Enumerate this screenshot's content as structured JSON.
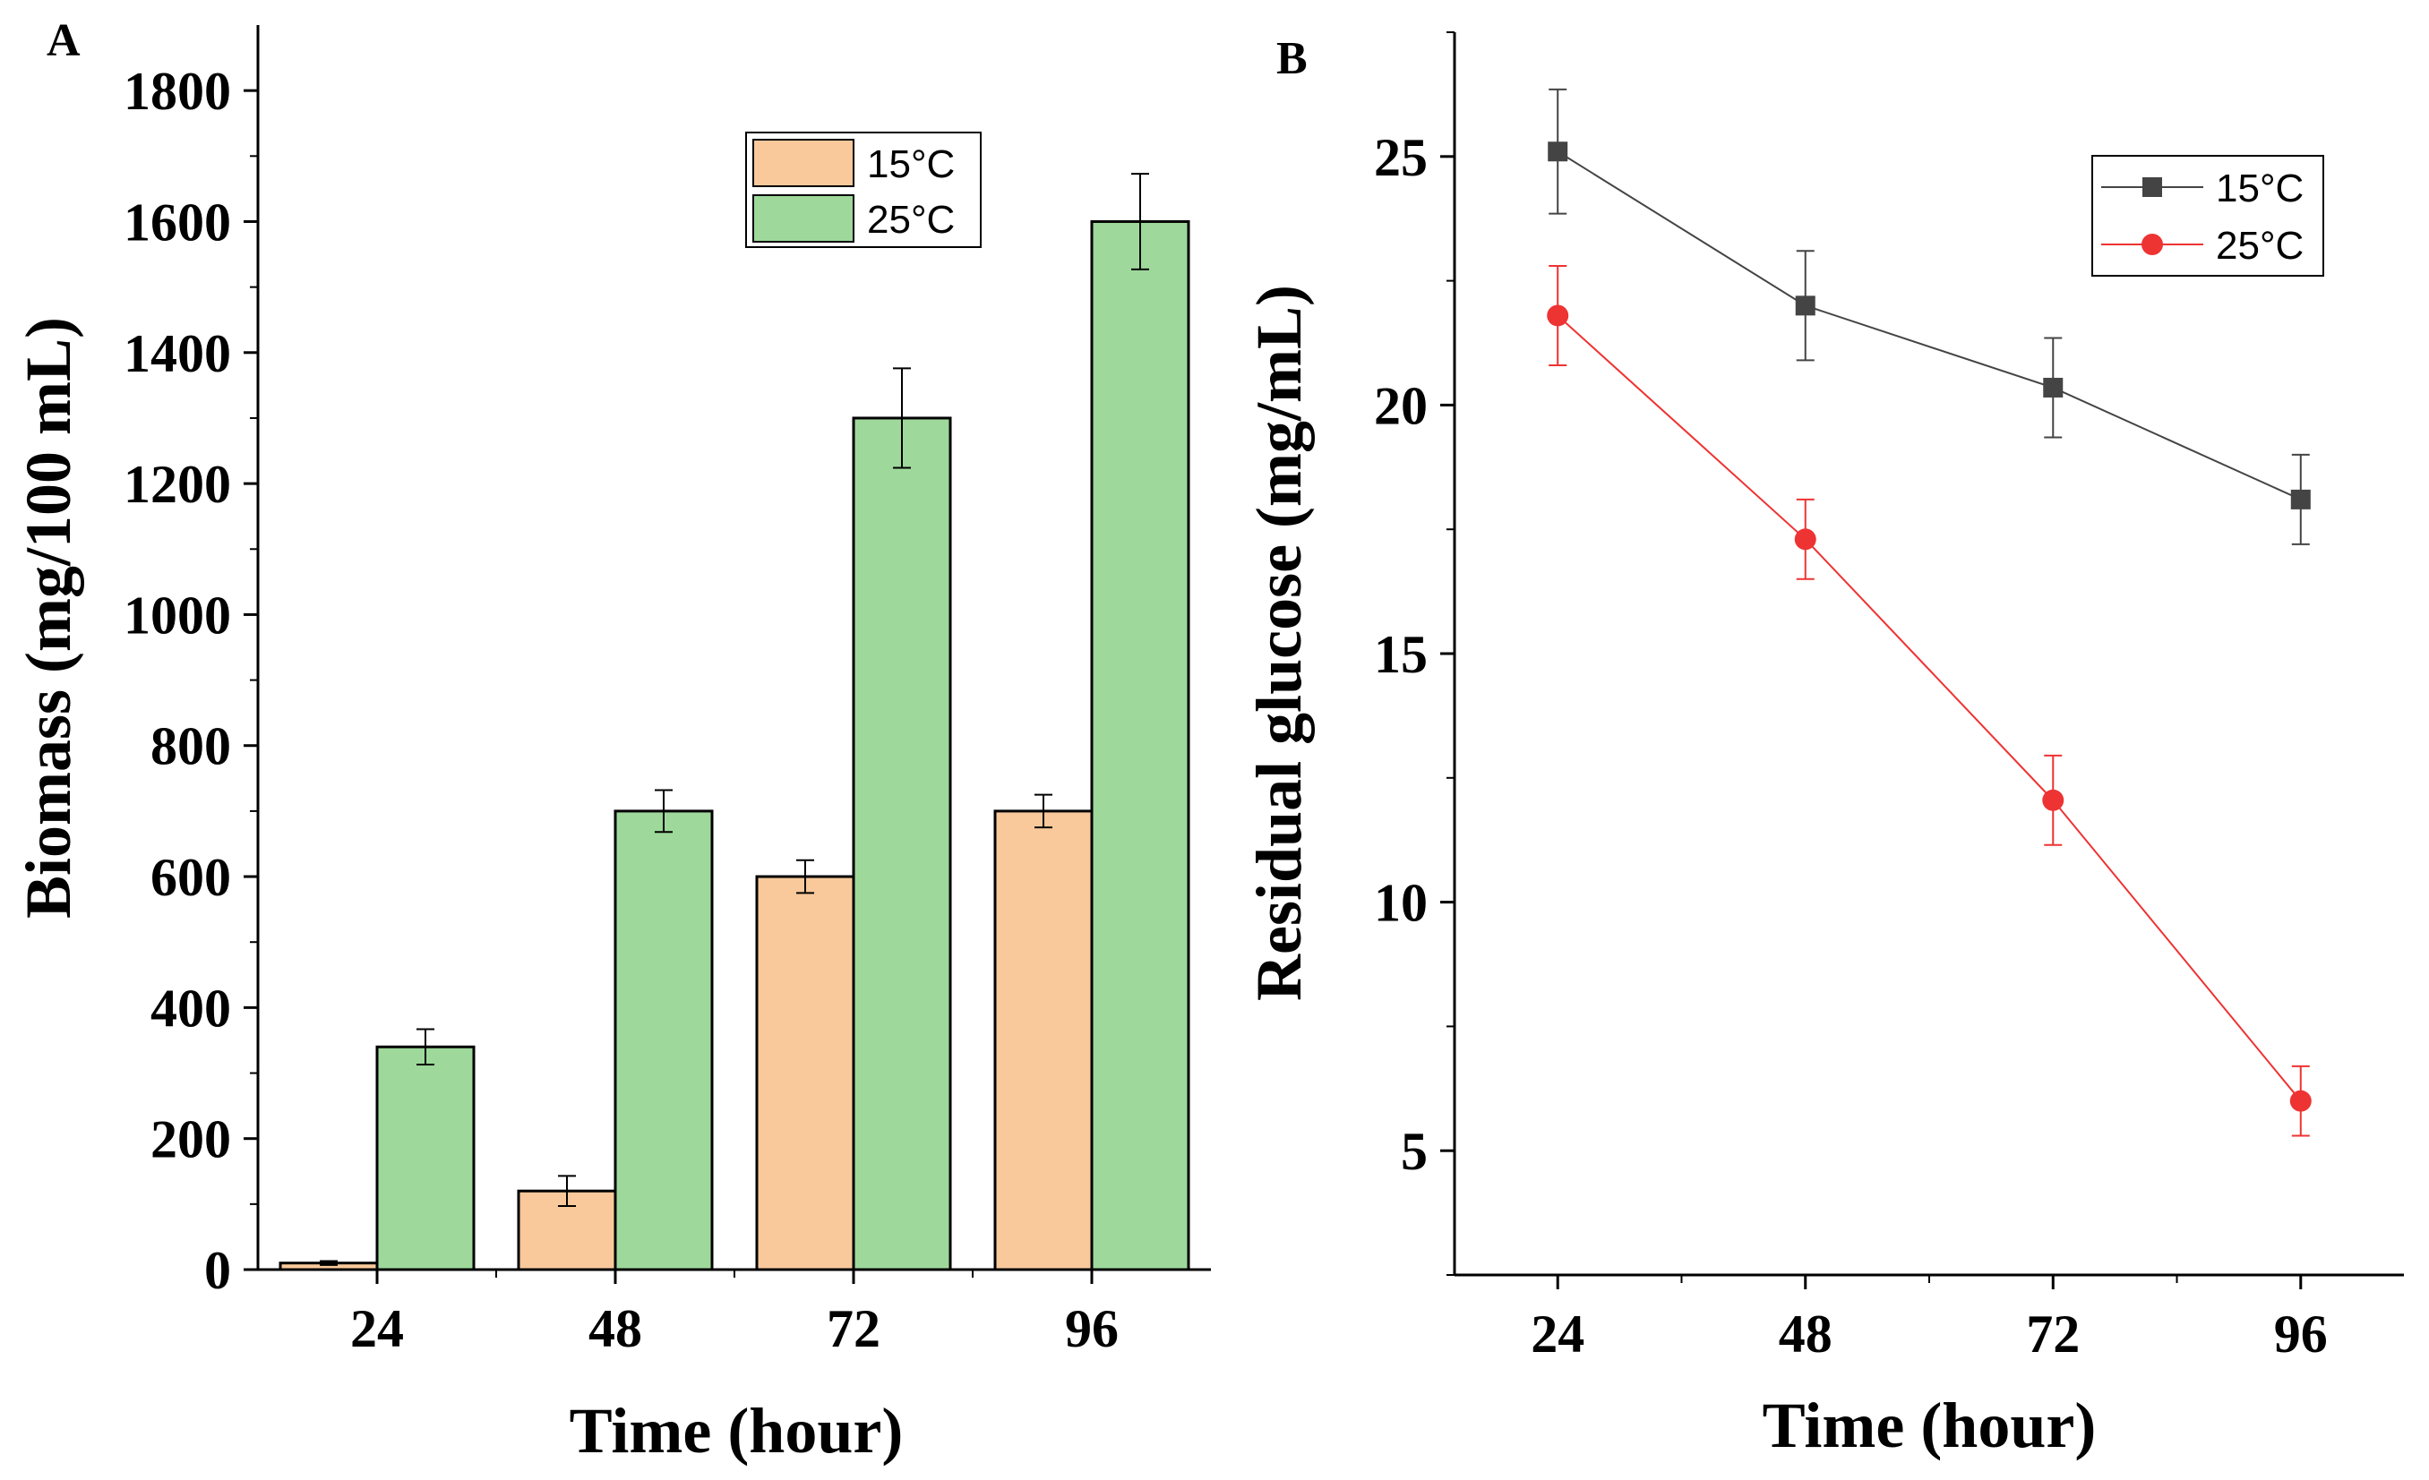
{
  "chart_data": [
    {
      "panel": "A",
      "type": "bar",
      "title": "",
      "xlabel": "Time (hour)",
      "ylabel": "Biomass (mg/100 mL)",
      "categories": [
        "24",
        "48",
        "72",
        "96"
      ],
      "ylim": [
        0,
        1900
      ],
      "yticks": [
        0,
        200,
        400,
        600,
        800,
        1000,
        1200,
        1400,
        1600,
        1800
      ],
      "series": [
        {
          "name": "15°C",
          "color": "#f9c99b",
          "values": [
            10,
            120,
            600,
            700
          ],
          "errors": [
            3,
            23,
            25,
            25
          ]
        },
        {
          "name": "25°C",
          "color": "#9ed99b",
          "values": [
            340,
            700,
            1300,
            1600
          ],
          "errors": [
            27,
            32,
            76,
            73
          ]
        }
      ],
      "legend_position": "top-right",
      "grid": false
    },
    {
      "panel": "B",
      "type": "line",
      "title": "",
      "xlabel": "Time (hour)",
      "ylabel": "Residual glucose (mg/mL)",
      "x": [
        24,
        48,
        72,
        96
      ],
      "xticks": [
        "24",
        "48",
        "72",
        "96"
      ],
      "ylim": [
        2.5,
        27.5
      ],
      "yticks": [
        "5",
        "10",
        "15",
        "20",
        "25"
      ],
      "series": [
        {
          "name": "15°C",
          "color": "#444444",
          "marker": "square",
          "values": [
            25.1,
            22.0,
            20.35,
            18.1
          ],
          "errors": [
            1.25,
            1.1,
            1.0,
            0.9
          ]
        },
        {
          "name": "25°C",
          "color": "#ee3333",
          "marker": "circle",
          "values": [
            21.8,
            17.3,
            12.05,
            6.0
          ],
          "errors": [
            1.0,
            0.8,
            0.9,
            0.7
          ]
        }
      ],
      "legend_position": "top-right",
      "grid": false
    }
  ]
}
